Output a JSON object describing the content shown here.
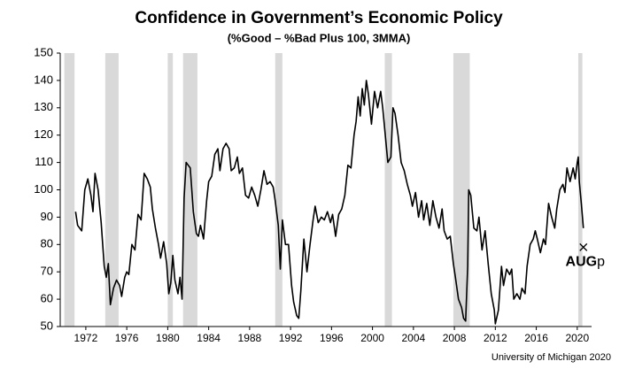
{
  "chart_data": {
    "type": "line",
    "title": "Confidence in Government’s Economic Policy",
    "subtitle": "(%Good – %Bad Plus 100, 3MMA)",
    "source": "University of Michigan 2020",
    "xlim": [
      1969.5,
      2021.4
    ],
    "ylim": [
      50,
      150
    ],
    "xticks": [
      1972,
      1976,
      1980,
      1984,
      1988,
      1992,
      1996,
      2000,
      2004,
      2008,
      2012,
      2016,
      2020
    ],
    "yticks": [
      50,
      60,
      70,
      80,
      90,
      100,
      110,
      120,
      130,
      140,
      150
    ],
    "recessions": [
      [
        1969.9,
        1970.9
      ],
      [
        1973.9,
        1975.2
      ],
      [
        1980.0,
        1980.5
      ],
      [
        1981.5,
        1982.9
      ],
      [
        1990.5,
        1991.2
      ],
      [
        2001.2,
        2001.9
      ],
      [
        2007.9,
        2009.5
      ],
      [
        2020.1,
        2020.5
      ]
    ],
    "recession_color": "#d9d9d9",
    "annotation": {
      "label": "AUG",
      "suffix": "p",
      "x": 2020.6,
      "y": 79
    },
    "x": [
      1971.0,
      1971.2,
      1971.6,
      1971.9,
      1972.2,
      1972.5,
      1972.7,
      1972.9,
      1973.2,
      1973.5,
      1973.8,
      1974.0,
      1974.2,
      1974.4,
      1974.7,
      1975.0,
      1975.3,
      1975.5,
      1975.8,
      1976.0,
      1976.2,
      1976.5,
      1976.8,
      1977.1,
      1977.4,
      1977.7,
      1978.0,
      1978.3,
      1978.5,
      1978.8,
      1979.1,
      1979.3,
      1979.6,
      1979.9,
      1980.1,
      1980.3,
      1980.5,
      1980.7,
      1981.0,
      1981.2,
      1981.4,
      1981.6,
      1981.8,
      1982.0,
      1982.2,
      1982.5,
      1982.8,
      1983.0,
      1983.2,
      1983.5,
      1983.8,
      1984.0,
      1984.3,
      1984.6,
      1984.9,
      1985.1,
      1985.4,
      1985.7,
      1986.0,
      1986.2,
      1986.5,
      1986.8,
      1987.0,
      1987.3,
      1987.6,
      1987.9,
      1988.2,
      1988.5,
      1988.8,
      1989.1,
      1989.4,
      1989.7,
      1990.0,
      1990.3,
      1990.5,
      1990.8,
      1991.0,
      1991.2,
      1991.5,
      1991.8,
      1992.1,
      1992.3,
      1992.6,
      1992.8,
      1993.0,
      1993.3,
      1993.6,
      1993.9,
      1994.2,
      1994.4,
      1994.7,
      1995.0,
      1995.3,
      1995.6,
      1995.9,
      1996.1,
      1996.4,
      1996.7,
      1997.0,
      1997.3,
      1997.6,
      1997.9,
      1998.2,
      1998.4,
      1998.6,
      1998.8,
      1999.0,
      1999.2,
      1999.4,
      1999.6,
      1999.9,
      2000.2,
      2000.5,
      2000.8,
      2001.0,
      2001.3,
      2001.5,
      2001.8,
      2002.0,
      2002.2,
      2002.5,
      2002.8,
      2003.1,
      2003.4,
      2003.7,
      2003.9,
      2004.2,
      2004.5,
      2004.8,
      2005.0,
      2005.3,
      2005.6,
      2005.9,
      2006.2,
      2006.5,
      2006.8,
      2007.0,
      2007.3,
      2007.6,
      2007.9,
      2008.1,
      2008.4,
      2008.7,
      2008.9,
      2009.1,
      2009.3,
      2009.4,
      2009.6,
      2009.9,
      2010.2,
      2010.4,
      2010.7,
      2011.0,
      2011.3,
      2011.6,
      2011.9,
      2012.0,
      2012.3,
      2012.6,
      2012.8,
      2013.1,
      2013.4,
      2013.6,
      2013.8,
      2014.1,
      2014.4,
      2014.6,
      2014.9,
      2015.1,
      2015.4,
      2015.7,
      2015.9,
      2016.1,
      2016.4,
      2016.7,
      2016.9,
      2017.2,
      2017.5,
      2017.8,
      2018.0,
      2018.3,
      2018.6,
      2018.8,
      2019.0,
      2019.3,
      2019.6,
      2019.8,
      2020.0,
      2020.1,
      2020.2,
      2020.4,
      2020.6
    ],
    "series": [
      {
        "color": "#000000",
        "values": [
          92,
          87,
          85,
          100,
          104,
          98,
          92,
          106,
          100,
          88,
          72,
          68,
          73,
          58,
          64,
          67,
          65,
          61,
          68,
          70,
          69,
          80,
          78,
          91,
          89,
          106,
          104,
          101,
          93,
          86,
          80,
          75,
          81,
          73,
          62,
          66,
          76,
          67,
          62,
          68,
          60,
          97,
          110,
          109,
          108,
          92,
          84,
          83,
          87,
          82,
          96,
          103,
          105,
          113,
          115,
          107,
          115,
          117,
          115,
          107,
          108,
          112,
          106,
          108,
          98,
          97,
          101,
          98,
          94,
          100,
          107,
          102,
          103,
          101,
          96,
          87,
          71,
          89,
          80,
          80,
          65,
          59,
          54,
          53,
          63,
          82,
          70,
          80,
          89,
          94,
          88,
          90,
          89,
          92,
          88,
          91,
          83,
          91,
          93,
          98,
          109,
          108,
          120,
          125,
          134,
          127,
          137,
          131,
          140,
          135,
          124,
          136,
          130,
          136,
          130,
          118,
          110,
          112,
          130,
          128,
          120,
          110,
          107,
          102,
          98,
          94,
          99,
          90,
          96,
          89,
          95,
          87,
          96,
          90,
          86,
          93,
          85,
          82,
          83,
          73,
          68,
          60,
          57,
          53,
          52,
          72,
          100,
          98,
          86,
          85,
          90,
          78,
          85,
          73,
          62,
          56,
          51,
          56,
          72,
          65,
          71,
          69,
          71,
          60,
          62,
          60,
          64,
          62,
          72,
          80,
          82,
          85,
          82,
          77,
          82,
          80,
          95,
          90,
          86,
          93,
          100,
          102,
          99,
          108,
          103,
          108,
          104,
          110,
          112,
          103,
          95,
          86
        ]
      }
    ]
  }
}
